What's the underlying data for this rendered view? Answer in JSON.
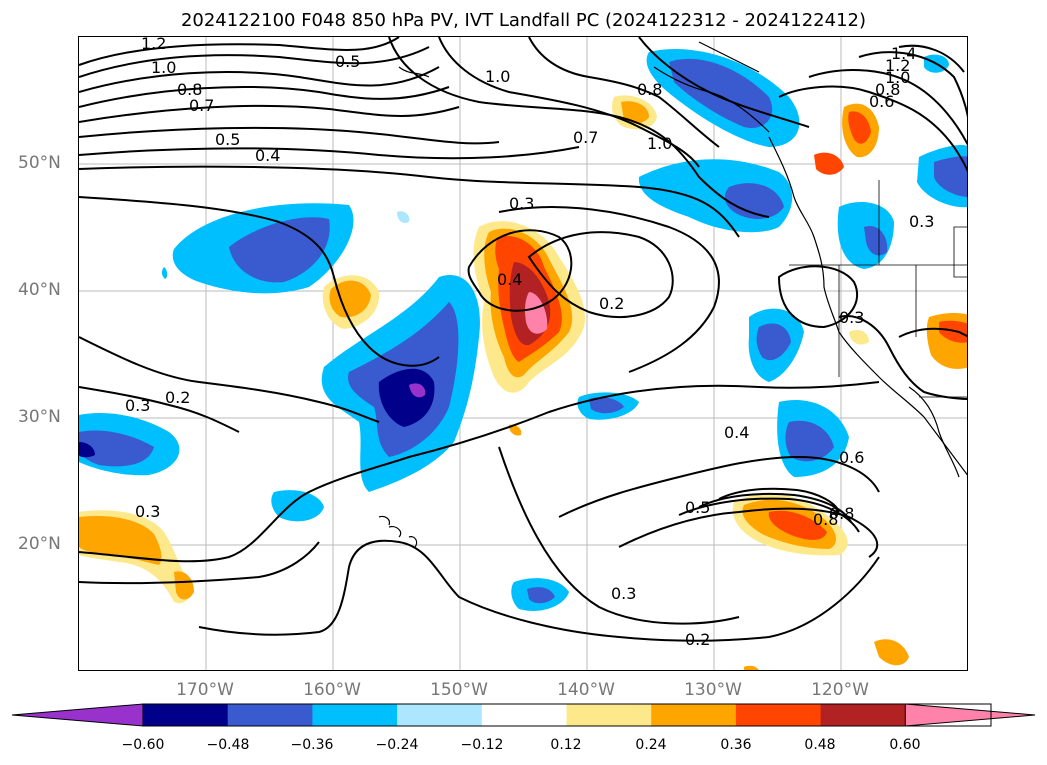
{
  "title": "2024122100 F048 850 hPa PV, IVT Landfall PC (2024122312 - 2024122412)",
  "lat_labels": [
    "50°N",
    "40°N",
    "30°N",
    "20°N"
  ],
  "lon_labels": [
    "170°W",
    "160°W",
    "150°W",
    "140°W",
    "130°W",
    "120°W"
  ],
  "colorbar": {
    "ticks": [
      "−0.60",
      "−0.48",
      "−0.36",
      "−0.24",
      "−0.12",
      "0.12",
      "0.24",
      "0.36",
      "0.48",
      "0.60"
    ],
    "colors": [
      "#9932cc",
      "#00008b",
      "#3a5bd0",
      "#00bfff",
      "#ade6ff",
      "#ffffff",
      "#fde98b",
      "#ffa500",
      "#ff4500",
      "#b22222",
      "#ff82ab"
    ]
  },
  "contour_labels": [
    "1.2",
    "1.0",
    "0.8",
    "0.7",
    "0.5",
    "0.4",
    "0.5",
    "1.0",
    "0.8",
    "0.7",
    "1.0",
    "1.4",
    "1.2",
    "1.0",
    "0.8",
    "0.6",
    "0.3",
    "0.3",
    "0.4",
    "0.2",
    "0.2",
    "0.3",
    "0.3",
    "0.4",
    "0.6",
    "0.8",
    "0.8",
    "0.5",
    "0.3",
    "0.2",
    "0.3"
  ]
}
